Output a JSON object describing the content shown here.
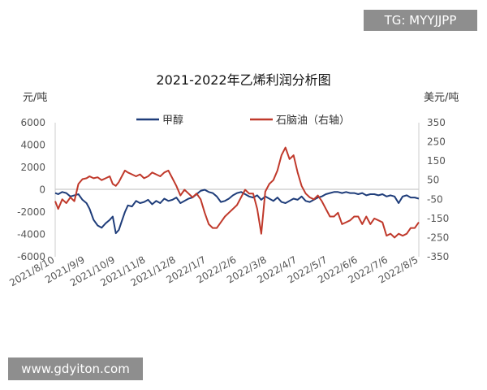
{
  "watermarks": {
    "top": "TG: MYYJJPP",
    "bottom": "www.gdyiton.com"
  },
  "chart_data": {
    "type": "line",
    "title": "2021-2022年乙烯利润分析图",
    "ylabel_left": "元/吨",
    "ylabel_right": "美元/吨",
    "ylim_left": [
      -6000,
      6000
    ],
    "yticks_left": [
      -6000,
      -4000,
      -2000,
      0,
      2000,
      4000,
      6000
    ],
    "ylim_right": [
      -350,
      350
    ],
    "yticks_right": [
      -350,
      -250,
      -150,
      -50,
      50,
      150,
      250,
      350
    ],
    "xlim": [
      "2021-08-10",
      "2022-08-05"
    ],
    "xticks": [
      "2021/8/10",
      "2021/9/9",
      "2021/10/9",
      "2021/11/8",
      "2021/12/8",
      "2022/1/7",
      "2022/2/6",
      "2022/3/8",
      "2022/4/7",
      "2022/5/7",
      "2022/6/6",
      "2022/7/6",
      "2022/8/5"
    ],
    "legend_position": "top-center",
    "grid": false,
    "series": [
      {
        "name": "甲醇",
        "axis": "left",
        "color": "#1f3d7a",
        "x": [
          "2021-08-10",
          "2021-08-13",
          "2021-08-17",
          "2021-08-21",
          "2021-08-25",
          "2021-08-29",
          "2021-09-02",
          "2021-09-06",
          "2021-09-10",
          "2021-09-13",
          "2021-09-17",
          "2021-09-21",
          "2021-09-25",
          "2021-09-29",
          "2021-10-03",
          "2021-10-06",
          "2021-10-09",
          "2021-10-12",
          "2021-10-15",
          "2021-10-18",
          "2021-10-21",
          "2021-10-25",
          "2021-10-29",
          "2021-11-02",
          "2021-11-06",
          "2021-11-10",
          "2021-11-14",
          "2021-11-18",
          "2021-11-22",
          "2021-11-26",
          "2021-11-30",
          "2021-12-04",
          "2021-12-08",
          "2021-12-12",
          "2021-12-16",
          "2021-12-20",
          "2021-12-24",
          "2021-12-28",
          "2022-01-01",
          "2022-01-05",
          "2022-01-09",
          "2022-01-13",
          "2022-01-17",
          "2022-01-21",
          "2022-01-25",
          "2022-01-29",
          "2022-02-02",
          "2022-02-06",
          "2022-02-10",
          "2022-02-14",
          "2022-02-18",
          "2022-02-22",
          "2022-02-26",
          "2022-03-02",
          "2022-03-06",
          "2022-03-10",
          "2022-03-14",
          "2022-03-18",
          "2022-03-22",
          "2022-03-26",
          "2022-03-30",
          "2022-04-03",
          "2022-04-07",
          "2022-04-11",
          "2022-04-15",
          "2022-04-19",
          "2022-04-23",
          "2022-04-27",
          "2022-05-01",
          "2022-05-05",
          "2022-05-09",
          "2022-05-13",
          "2022-05-17",
          "2022-05-21",
          "2022-05-25",
          "2022-05-29",
          "2022-06-02",
          "2022-06-06",
          "2022-06-10",
          "2022-06-14",
          "2022-06-18",
          "2022-06-22",
          "2022-06-26",
          "2022-06-30",
          "2022-07-04",
          "2022-07-08",
          "2022-07-12",
          "2022-07-16",
          "2022-07-20",
          "2022-07-24",
          "2022-07-28",
          "2022-08-01",
          "2022-08-05"
        ],
        "values": [
          -300,
          -400,
          -200,
          -300,
          -600,
          -500,
          -400,
          -900,
          -1200,
          -1700,
          -2700,
          -3200,
          -3400,
          -3000,
          -2700,
          -2400,
          -3900,
          -3600,
          -2800,
          -2000,
          -1400,
          -1500,
          -1000,
          -1200,
          -1100,
          -900,
          -1300,
          -1000,
          -1200,
          -800,
          -1000,
          -900,
          -700,
          -1200,
          -1000,
          -800,
          -700,
          -400,
          -100,
          0,
          -200,
          -300,
          -600,
          -1100,
          -1000,
          -800,
          -500,
          -300,
          -200,
          -400,
          -600,
          -700,
          -500,
          -900,
          -600,
          -800,
          -1000,
          -700,
          -1100,
          -1200,
          -1000,
          -800,
          -900,
          -600,
          -1000,
          -1100,
          -900,
          -700,
          -600,
          -400,
          -300,
          -200,
          -200,
          -300,
          -200,
          -300,
          -300,
          -400,
          -300,
          -500,
          -400,
          -400,
          -500,
          -400,
          -600,
          -500,
          -600,
          -1200,
          -600,
          -500,
          -700,
          -700,
          -800
        ]
      },
      {
        "name": "石脑油（右轴）",
        "axis": "right",
        "color": "#c0392b",
        "x": [
          "2021-08-10",
          "2021-08-13",
          "2021-08-17",
          "2021-08-21",
          "2021-08-25",
          "2021-08-29",
          "2021-09-02",
          "2021-09-06",
          "2021-09-10",
          "2021-09-13",
          "2021-09-17",
          "2021-09-21",
          "2021-09-25",
          "2021-09-29",
          "2021-10-03",
          "2021-10-06",
          "2021-10-09",
          "2021-10-12",
          "2021-10-15",
          "2021-10-18",
          "2021-10-21",
          "2021-10-25",
          "2021-10-29",
          "2021-11-02",
          "2021-11-06",
          "2021-11-10",
          "2021-11-14",
          "2021-11-18",
          "2021-11-22",
          "2021-11-26",
          "2021-11-30",
          "2021-12-04",
          "2021-12-08",
          "2021-12-12",
          "2021-12-16",
          "2021-12-20",
          "2021-12-24",
          "2021-12-28",
          "2022-01-01",
          "2022-01-05",
          "2022-01-09",
          "2022-01-13",
          "2022-01-17",
          "2022-01-21",
          "2022-01-25",
          "2022-01-29",
          "2022-02-02",
          "2022-02-06",
          "2022-02-10",
          "2022-02-14",
          "2022-02-18",
          "2022-02-22",
          "2022-02-26",
          "2022-03-02",
          "2022-03-06",
          "2022-03-10",
          "2022-03-14",
          "2022-03-18",
          "2022-03-22",
          "2022-03-26",
          "2022-03-30",
          "2022-04-03",
          "2022-04-07",
          "2022-04-11",
          "2022-04-15",
          "2022-04-19",
          "2022-04-23",
          "2022-04-27",
          "2022-05-01",
          "2022-05-05",
          "2022-05-09",
          "2022-05-13",
          "2022-05-17",
          "2022-05-21",
          "2022-05-25",
          "2022-05-29",
          "2022-06-02",
          "2022-06-06",
          "2022-06-10",
          "2022-06-14",
          "2022-06-18",
          "2022-06-22",
          "2022-06-26",
          "2022-06-30",
          "2022-07-04",
          "2022-07-08",
          "2022-07-12",
          "2022-07-16",
          "2022-07-20",
          "2022-07-24",
          "2022-07-28",
          "2022-08-01",
          "2022-08-05"
        ],
        "values": [
          -60,
          -100,
          -50,
          -70,
          -40,
          -60,
          30,
          55,
          60,
          70,
          60,
          65,
          50,
          60,
          70,
          30,
          20,
          40,
          70,
          100,
          90,
          80,
          70,
          80,
          60,
          70,
          90,
          80,
          70,
          90,
          100,
          60,
          20,
          -30,
          0,
          -20,
          -40,
          -20,
          -50,
          -120,
          -180,
          -200,
          -200,
          -170,
          -140,
          -120,
          -100,
          -80,
          -40,
          0,
          -20,
          -20,
          -100,
          -230,
          -10,
          30,
          50,
          100,
          180,
          220,
          160,
          180,
          90,
          20,
          -20,
          -40,
          -50,
          -30,
          -60,
          -100,
          -140,
          -140,
          -120,
          -180,
          -170,
          -160,
          -140,
          -140,
          -180,
          -140,
          -180,
          -150,
          -160,
          -170,
          -240,
          -230,
          -250,
          -230,
          -240,
          -230,
          -200,
          -200,
          -170
        ]
      }
    ]
  }
}
